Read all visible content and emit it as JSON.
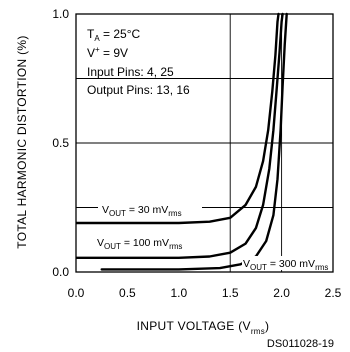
{
  "chart_data": {
    "type": "line",
    "xlabel": "INPUT VOLTAGE (V",
    "xlabel_sub": "rms",
    "xlabel_end": ")",
    "ylabel": "TOTAL HARMONIC DISTORTION (%)",
    "xlim": [
      0.0,
      2.5
    ],
    "ylim": [
      0.0,
      1.0
    ],
    "x_ticks": [
      0.0,
      0.5,
      1.0,
      1.5,
      2.0,
      2.5
    ],
    "x_tick_labels": [
      "0.0",
      "0.5",
      "1.0",
      "1.5",
      "2.0",
      "2.5"
    ],
    "y_ticks": [
      0.0,
      0.5,
      1.0
    ],
    "y_tick_labels": [
      "0.0",
      "0.5",
      "1.0"
    ],
    "grid": true,
    "conditions": {
      "ta": {
        "main": "T",
        "sub": "A",
        "rest": " = 25°C"
      },
      "vplus": {
        "main": "V",
        "sup": "+",
        "rest": " = 9V"
      },
      "input_pins": "Input Pins: 4, 25",
      "output_pins": "Output Pins: 13, 16"
    },
    "series": [
      {
        "label": {
          "main": "V",
          "sub1": "OUT",
          "mid": " = 30 mV",
          "sub2": "rms"
        },
        "points": [
          [
            -0.1,
            0.19
          ],
          [
            0.0,
            0.19
          ],
          [
            0.5,
            0.19
          ],
          [
            1.0,
            0.19
          ],
          [
            1.3,
            0.195
          ],
          [
            1.5,
            0.21
          ],
          [
            1.65,
            0.26
          ],
          [
            1.75,
            0.33
          ],
          [
            1.82,
            0.43
          ],
          [
            1.87,
            0.55
          ],
          [
            1.91,
            0.7
          ],
          [
            1.94,
            0.84
          ],
          [
            1.96,
            0.97
          ],
          [
            1.97,
            1.0
          ]
        ]
      },
      {
        "label": {
          "main": "V",
          "sub1": "OUT",
          "mid": " = 100 mV",
          "sub2": "rms"
        },
        "points": [
          [
            0.0,
            0.055
          ],
          [
            0.5,
            0.055
          ],
          [
            1.0,
            0.055
          ],
          [
            1.3,
            0.06
          ],
          [
            1.5,
            0.075
          ],
          [
            1.65,
            0.11
          ],
          [
            1.75,
            0.17
          ],
          [
            1.82,
            0.26
          ],
          [
            1.88,
            0.4
          ],
          [
            1.92,
            0.55
          ],
          [
            1.95,
            0.7
          ],
          [
            1.98,
            0.85
          ],
          [
            2.0,
            0.97
          ],
          [
            2.01,
            1.0
          ]
        ]
      },
      {
        "label": {
          "main": "V",
          "sub1": "OUT",
          "mid": " = 300 mV",
          "sub2": "rms"
        },
        "points": [
          [
            0.25,
            0.01
          ],
          [
            0.5,
            0.01
          ],
          [
            1.0,
            0.01
          ],
          [
            1.4,
            0.015
          ],
          [
            1.6,
            0.03
          ],
          [
            1.75,
            0.06
          ],
          [
            1.85,
            0.12
          ],
          [
            1.92,
            0.22
          ],
          [
            1.96,
            0.36
          ],
          [
            1.99,
            0.55
          ],
          [
            2.01,
            0.72
          ],
          [
            2.03,
            0.88
          ],
          [
            2.05,
            1.0
          ]
        ]
      }
    ]
  },
  "figure_id": "DS011028-19"
}
